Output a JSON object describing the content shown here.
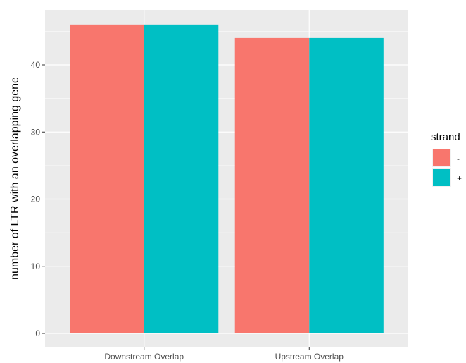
{
  "chart_data": {
    "type": "bar",
    "categories": [
      "Downstream Overlap",
      "Upstream Overlap"
    ],
    "series": [
      {
        "name": "-",
        "values": [
          46,
          44
        ],
        "color": "#F8766D"
      },
      {
        "name": "+",
        "values": [
          46,
          44
        ],
        "color": "#00BFC4"
      }
    ],
    "xlabel": "",
    "ylabel": "number of LTR with an overlapping gene",
    "ylim": [
      0,
      48.3
    ],
    "yticks": [
      0,
      10,
      20,
      30,
      40
    ],
    "grid": true,
    "legend": {
      "title": "strand",
      "position": "right"
    },
    "colors": {
      "panel_background": "#EBEBEB",
      "gridline": "#FFFFFF",
      "tick_text": "#4D4D4D"
    }
  }
}
